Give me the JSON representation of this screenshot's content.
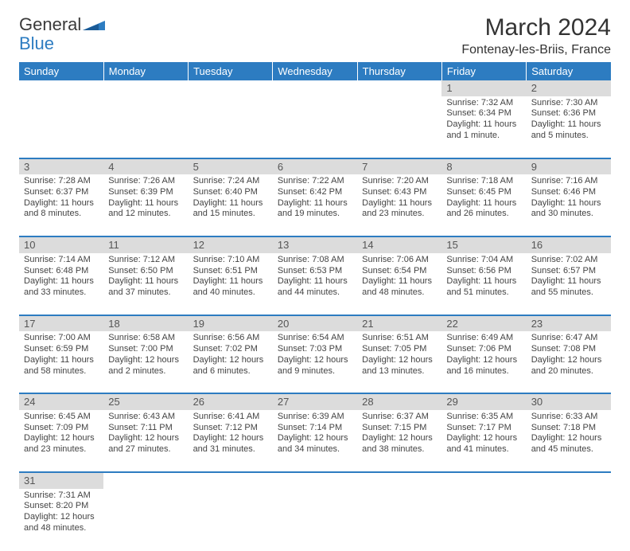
{
  "logo": {
    "text1": "General",
    "text2": "Blue",
    "shape_color": "#2d7cc1"
  },
  "title": "March 2024",
  "location": "Fontenay-les-Briis, France",
  "weekday_header_bg": "#2d7cc1",
  "daynum_bg": "#dcdcdc",
  "rule_color": "#2d7cc1",
  "weekdays": [
    "Sunday",
    "Monday",
    "Tuesday",
    "Wednesday",
    "Thursday",
    "Friday",
    "Saturday"
  ],
  "weeks": [
    [
      null,
      null,
      null,
      null,
      null,
      {
        "n": "1",
        "sunrise": "Sunrise: 7:32 AM",
        "sunset": "Sunset: 6:34 PM",
        "day": "Daylight: 11 hours and 1 minute."
      },
      {
        "n": "2",
        "sunrise": "Sunrise: 7:30 AM",
        "sunset": "Sunset: 6:36 PM",
        "day": "Daylight: 11 hours and 5 minutes."
      }
    ],
    [
      {
        "n": "3",
        "sunrise": "Sunrise: 7:28 AM",
        "sunset": "Sunset: 6:37 PM",
        "day": "Daylight: 11 hours and 8 minutes."
      },
      {
        "n": "4",
        "sunrise": "Sunrise: 7:26 AM",
        "sunset": "Sunset: 6:39 PM",
        "day": "Daylight: 11 hours and 12 minutes."
      },
      {
        "n": "5",
        "sunrise": "Sunrise: 7:24 AM",
        "sunset": "Sunset: 6:40 PM",
        "day": "Daylight: 11 hours and 15 minutes."
      },
      {
        "n": "6",
        "sunrise": "Sunrise: 7:22 AM",
        "sunset": "Sunset: 6:42 PM",
        "day": "Daylight: 11 hours and 19 minutes."
      },
      {
        "n": "7",
        "sunrise": "Sunrise: 7:20 AM",
        "sunset": "Sunset: 6:43 PM",
        "day": "Daylight: 11 hours and 23 minutes."
      },
      {
        "n": "8",
        "sunrise": "Sunrise: 7:18 AM",
        "sunset": "Sunset: 6:45 PM",
        "day": "Daylight: 11 hours and 26 minutes."
      },
      {
        "n": "9",
        "sunrise": "Sunrise: 7:16 AM",
        "sunset": "Sunset: 6:46 PM",
        "day": "Daylight: 11 hours and 30 minutes."
      }
    ],
    [
      {
        "n": "10",
        "sunrise": "Sunrise: 7:14 AM",
        "sunset": "Sunset: 6:48 PM",
        "day": "Daylight: 11 hours and 33 minutes."
      },
      {
        "n": "11",
        "sunrise": "Sunrise: 7:12 AM",
        "sunset": "Sunset: 6:50 PM",
        "day": "Daylight: 11 hours and 37 minutes."
      },
      {
        "n": "12",
        "sunrise": "Sunrise: 7:10 AM",
        "sunset": "Sunset: 6:51 PM",
        "day": "Daylight: 11 hours and 40 minutes."
      },
      {
        "n": "13",
        "sunrise": "Sunrise: 7:08 AM",
        "sunset": "Sunset: 6:53 PM",
        "day": "Daylight: 11 hours and 44 minutes."
      },
      {
        "n": "14",
        "sunrise": "Sunrise: 7:06 AM",
        "sunset": "Sunset: 6:54 PM",
        "day": "Daylight: 11 hours and 48 minutes."
      },
      {
        "n": "15",
        "sunrise": "Sunrise: 7:04 AM",
        "sunset": "Sunset: 6:56 PM",
        "day": "Daylight: 11 hours and 51 minutes."
      },
      {
        "n": "16",
        "sunrise": "Sunrise: 7:02 AM",
        "sunset": "Sunset: 6:57 PM",
        "day": "Daylight: 11 hours and 55 minutes."
      }
    ],
    [
      {
        "n": "17",
        "sunrise": "Sunrise: 7:00 AM",
        "sunset": "Sunset: 6:59 PM",
        "day": "Daylight: 11 hours and 58 minutes."
      },
      {
        "n": "18",
        "sunrise": "Sunrise: 6:58 AM",
        "sunset": "Sunset: 7:00 PM",
        "day": "Daylight: 12 hours and 2 minutes."
      },
      {
        "n": "19",
        "sunrise": "Sunrise: 6:56 AM",
        "sunset": "Sunset: 7:02 PM",
        "day": "Daylight: 12 hours and 6 minutes."
      },
      {
        "n": "20",
        "sunrise": "Sunrise: 6:54 AM",
        "sunset": "Sunset: 7:03 PM",
        "day": "Daylight: 12 hours and 9 minutes."
      },
      {
        "n": "21",
        "sunrise": "Sunrise: 6:51 AM",
        "sunset": "Sunset: 7:05 PM",
        "day": "Daylight: 12 hours and 13 minutes."
      },
      {
        "n": "22",
        "sunrise": "Sunrise: 6:49 AM",
        "sunset": "Sunset: 7:06 PM",
        "day": "Daylight: 12 hours and 16 minutes."
      },
      {
        "n": "23",
        "sunrise": "Sunrise: 6:47 AM",
        "sunset": "Sunset: 7:08 PM",
        "day": "Daylight: 12 hours and 20 minutes."
      }
    ],
    [
      {
        "n": "24",
        "sunrise": "Sunrise: 6:45 AM",
        "sunset": "Sunset: 7:09 PM",
        "day": "Daylight: 12 hours and 23 minutes."
      },
      {
        "n": "25",
        "sunrise": "Sunrise: 6:43 AM",
        "sunset": "Sunset: 7:11 PM",
        "day": "Daylight: 12 hours and 27 minutes."
      },
      {
        "n": "26",
        "sunrise": "Sunrise: 6:41 AM",
        "sunset": "Sunset: 7:12 PM",
        "day": "Daylight: 12 hours and 31 minutes."
      },
      {
        "n": "27",
        "sunrise": "Sunrise: 6:39 AM",
        "sunset": "Sunset: 7:14 PM",
        "day": "Daylight: 12 hours and 34 minutes."
      },
      {
        "n": "28",
        "sunrise": "Sunrise: 6:37 AM",
        "sunset": "Sunset: 7:15 PM",
        "day": "Daylight: 12 hours and 38 minutes."
      },
      {
        "n": "29",
        "sunrise": "Sunrise: 6:35 AM",
        "sunset": "Sunset: 7:17 PM",
        "day": "Daylight: 12 hours and 41 minutes."
      },
      {
        "n": "30",
        "sunrise": "Sunrise: 6:33 AM",
        "sunset": "Sunset: 7:18 PM",
        "day": "Daylight: 12 hours and 45 minutes."
      }
    ],
    [
      {
        "n": "31",
        "sunrise": "Sunrise: 7:31 AM",
        "sunset": "Sunset: 8:20 PM",
        "day": "Daylight: 12 hours and 48 minutes."
      },
      null,
      null,
      null,
      null,
      null,
      null
    ]
  ]
}
